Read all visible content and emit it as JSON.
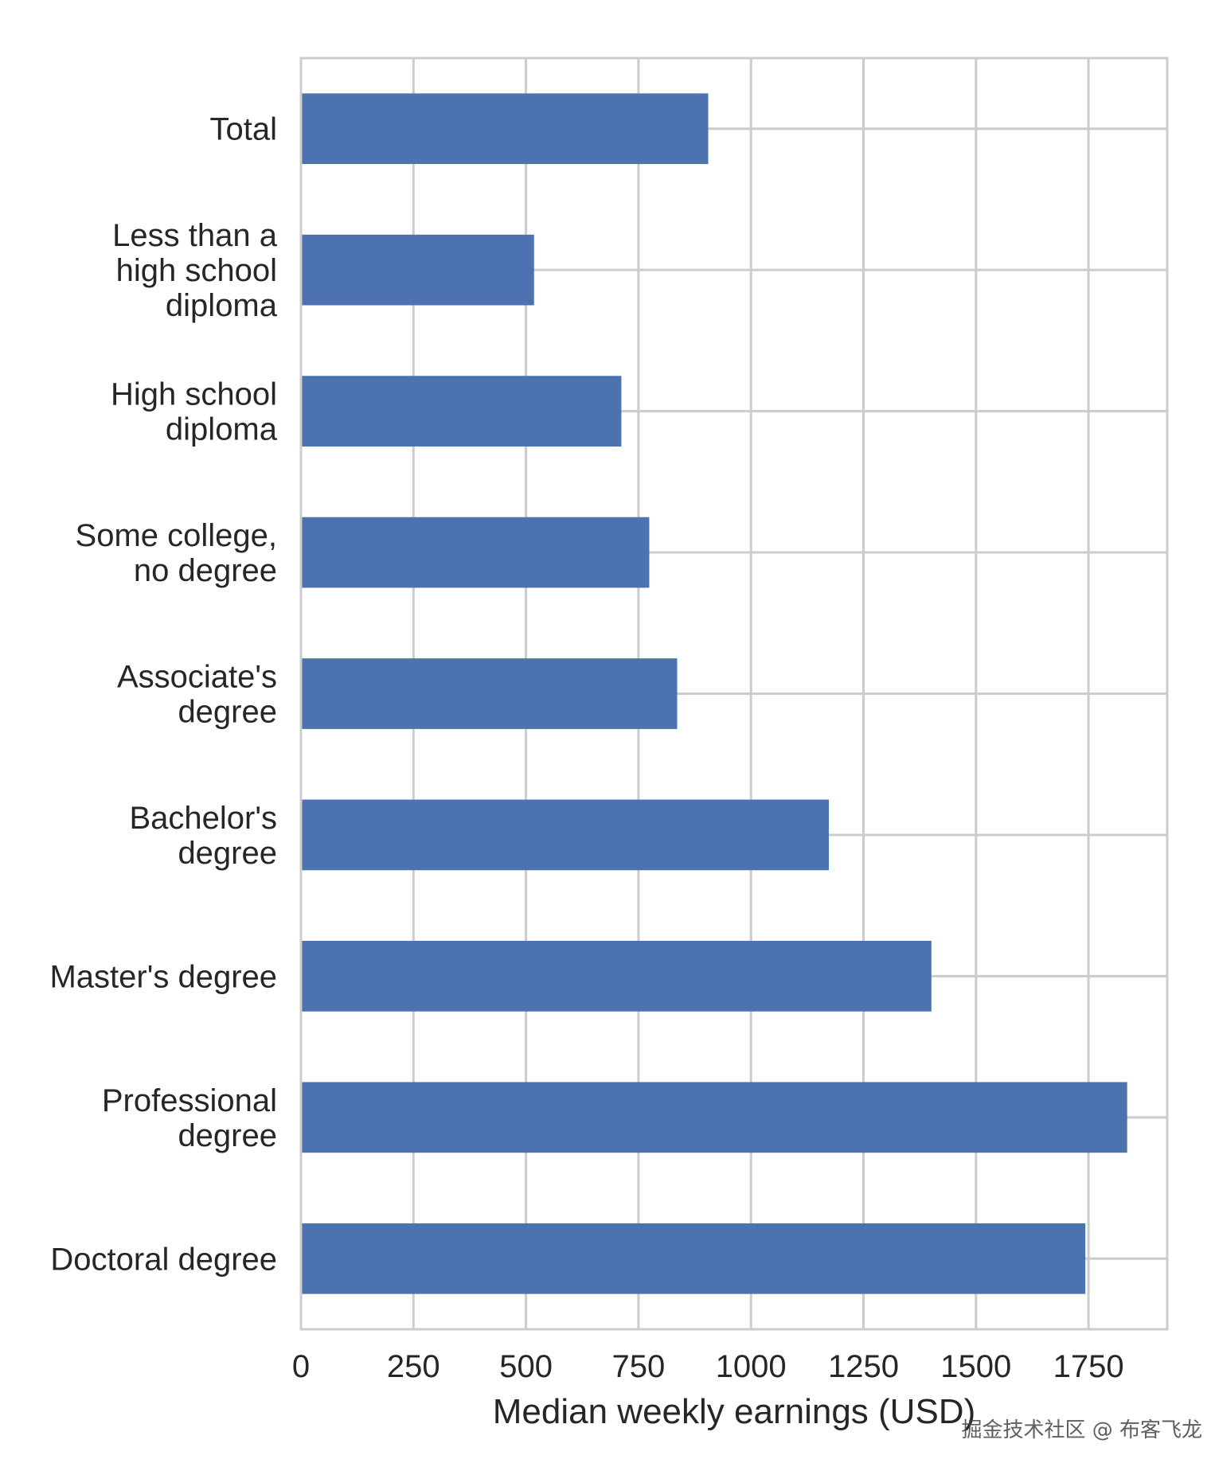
{
  "chart_data": {
    "type": "bar",
    "orientation": "horizontal",
    "categories": [
      [
        "Total"
      ],
      [
        "Less than a",
        "high school",
        "diploma"
      ],
      [
        "High school",
        "diploma"
      ],
      [
        "Some college,",
        "no degree"
      ],
      [
        "Associate's",
        "degree"
      ],
      [
        "Bachelor's",
        "degree"
      ],
      [
        "Master's degree"
      ],
      [
        "Professional",
        "degree"
      ],
      [
        "Doctoral degree"
      ]
    ],
    "values": [
      905,
      518,
      712,
      774,
      836,
      1173,
      1401,
      1836,
      1743
    ],
    "xlabel": "Median weekly earnings (USD)",
    "ylabel": "",
    "xlim": [
      0,
      1925
    ],
    "xticks": [
      "0",
      "250",
      "500",
      "750",
      "1000",
      "1250",
      "1500",
      "1750"
    ],
    "grid": true,
    "bar_color": "#4c72b0",
    "grid_color": "#cccccc"
  },
  "watermark": "掘金技术社区 @ 布客飞龙"
}
